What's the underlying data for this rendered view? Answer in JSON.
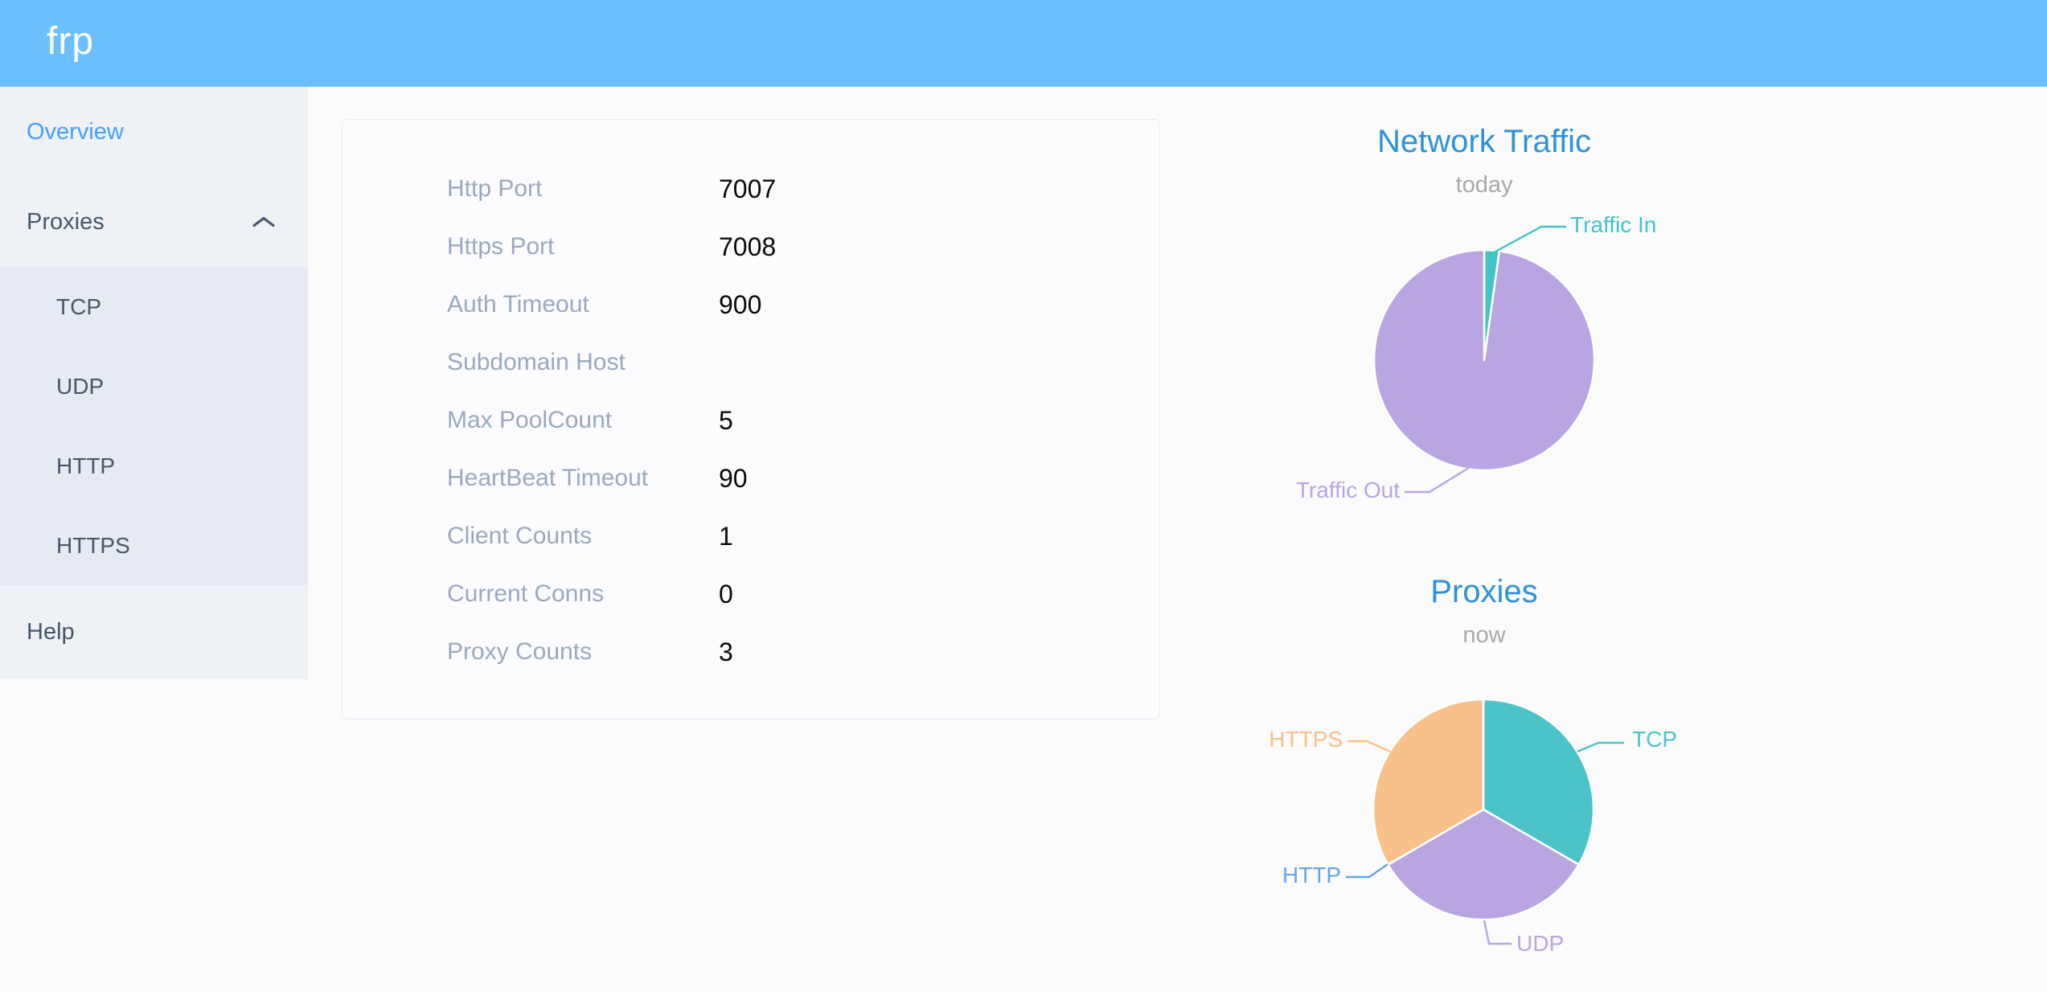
{
  "header": {
    "logo": "frp"
  },
  "sidebar": {
    "overview": "Overview",
    "proxies": "Proxies",
    "submenu": [
      "TCP",
      "UDP",
      "HTTP",
      "HTTPS"
    ],
    "help": "Help"
  },
  "server_info": {
    "rows": [
      {
        "label": "Http Port",
        "value": "7007"
      },
      {
        "label": "Https Port",
        "value": "7008"
      },
      {
        "label": "Auth Timeout",
        "value": "900"
      },
      {
        "label": "Subdomain Host",
        "value": ""
      },
      {
        "label": "Max PoolCount",
        "value": "5"
      },
      {
        "label": "HeartBeat Timeout",
        "value": "90"
      },
      {
        "label": "Client Counts",
        "value": "1"
      },
      {
        "label": "Current Conns",
        "value": "0"
      },
      {
        "label": "Proxy Counts",
        "value": "3"
      }
    ]
  },
  "colors": {
    "header_bg": "#6CBFFF",
    "sidebar_bg": "#EEF1F6",
    "submenu_bg": "#E6EAF2",
    "menu_text": "#48576A",
    "active_menu_text": "#459FFF",
    "chart_title_blue": "#2F92D8",
    "info_label_gray": "#9AA9BF"
  },
  "chart_data": [
    {
      "type": "pie",
      "title": "Network Traffic",
      "subtitle": "today",
      "legend_position": "callout-labels",
      "values_are": "estimated_percent",
      "slices": [
        {
          "label": "Traffic In",
          "value": 2.2,
          "color": "#41C4C9"
        },
        {
          "label": "Traffic Out",
          "value": 97.8,
          "color": "#B9A5E2"
        }
      ]
    },
    {
      "type": "pie",
      "title": "Proxies",
      "subtitle": "now",
      "legend_position": "callout-labels",
      "values_are": "proxy_count",
      "slices": [
        {
          "label": "TCP",
          "value": 1,
          "color": "#4CC3C9"
        },
        {
          "label": "UDP",
          "value": 1,
          "color": "#B9A5E2"
        },
        {
          "label": "HTTP",
          "value": 0,
          "color": "#64A6E8"
        },
        {
          "label": "HTTPS",
          "value": 1,
          "color": "#F8C189"
        }
      ]
    }
  ]
}
